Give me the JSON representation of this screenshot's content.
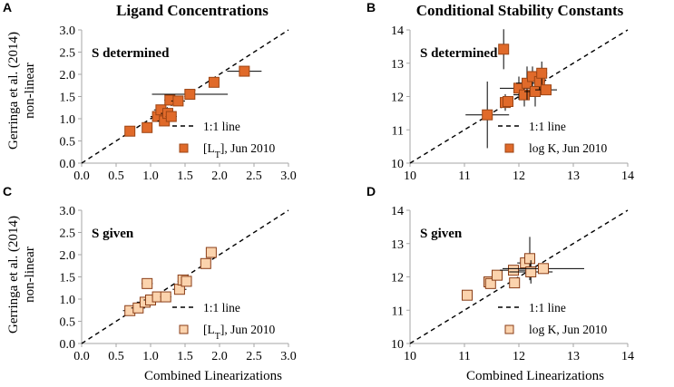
{
  "figure": {
    "column_titles": [
      "Ligand Concentrations",
      "Conditional Stability Constants"
    ],
    "y_axis_title_line1": "Gerringa et al. (2014)",
    "y_axis_title_line2": "non-linear",
    "x_axis_title": "Combined Linearizations"
  },
  "chart_data": [
    {
      "panel": "A",
      "type": "scatter",
      "annotation": "S determined",
      "xlim": [
        0.0,
        3.0
      ],
      "ylim": [
        0.0,
        3.0
      ],
      "xticks": [
        "0.0",
        "0.5",
        "1.0",
        "1.5",
        "2.0",
        "2.5",
        "3.0"
      ],
      "yticks": [
        "0.0",
        "0.5",
        "1.0",
        "1.5",
        "2.0",
        "2.5",
        "3.0"
      ],
      "legend": [
        "1:1 line",
        "[L",
        "T",
        "], Jun 2010"
      ],
      "marker": "dark",
      "points": [
        {
          "x": 0.7,
          "y": 0.72,
          "xerr": 0.05,
          "yerr": 0.05
        },
        {
          "x": 0.95,
          "y": 0.8,
          "xerr": 0.05,
          "yerr": 0.05
        },
        {
          "x": 1.1,
          "y": 1.05,
          "xerr": 0.1,
          "yerr": 0.1
        },
        {
          "x": 1.15,
          "y": 1.2,
          "xerr": 0.1,
          "yerr": 0.1
        },
        {
          "x": 1.2,
          "y": 0.95,
          "xerr": 0.1,
          "yerr": 0.08
        },
        {
          "x": 1.25,
          "y": 1.12,
          "xerr": 0.1,
          "yerr": 0.08
        },
        {
          "x": 1.3,
          "y": 1.05,
          "xerr": 0.08,
          "yerr": 0.08
        },
        {
          "x": 1.28,
          "y": 1.42,
          "xerr": 0.08,
          "yerr": 0.1
        },
        {
          "x": 1.4,
          "y": 1.4,
          "xerr": 0.1,
          "yerr": 0.1
        },
        {
          "x": 1.57,
          "y": 1.55,
          "xerr": 0.55,
          "yerr": 0.05
        },
        {
          "x": 1.92,
          "y": 1.82,
          "xerr": 0.05,
          "yerr": 0.05
        },
        {
          "x": 2.36,
          "y": 2.07,
          "xerr": 0.25,
          "yerr": 0.05
        }
      ]
    },
    {
      "panel": "B",
      "type": "scatter",
      "annotation": "S determined",
      "xlim": [
        10,
        14
      ],
      "ylim": [
        10,
        14
      ],
      "xticks": [
        "10",
        "11",
        "12",
        "13",
        "14"
      ],
      "yticks": [
        "10",
        "11",
        "12",
        "13",
        "14"
      ],
      "legend": [
        "1:1 line",
        "log K, Jun 2010"
      ],
      "marker": "dark",
      "points": [
        {
          "x": 11.42,
          "y": 11.45,
          "xerr": 0.4,
          "yerr": 1.0
        },
        {
          "x": 11.72,
          "y": 13.42,
          "xerr": 0.04,
          "yerr": 0.6
        },
        {
          "x": 11.75,
          "y": 11.82,
          "xerr": 0.1,
          "yerr": 0.25
        },
        {
          "x": 11.8,
          "y": 11.85,
          "xerr": 0.1,
          "yerr": 0.1
        },
        {
          "x": 12.0,
          "y": 12.25,
          "xerr": 0.35,
          "yerr": 0.35
        },
        {
          "x": 12.1,
          "y": 12.05,
          "xerr": 0.2,
          "yerr": 0.35
        },
        {
          "x": 12.15,
          "y": 12.4,
          "xerr": 0.2,
          "yerr": 0.5
        },
        {
          "x": 12.25,
          "y": 12.6,
          "xerr": 0.1,
          "yerr": 0.3
        },
        {
          "x": 12.3,
          "y": 12.15,
          "xerr": 0.2,
          "yerr": 0.45
        },
        {
          "x": 12.38,
          "y": 12.45,
          "xerr": 0.1,
          "yerr": 0.25
        },
        {
          "x": 12.42,
          "y": 12.7,
          "xerr": 0.1,
          "yerr": 0.35
        },
        {
          "x": 12.5,
          "y": 12.2,
          "xerr": 0.2,
          "yerr": 0.15
        }
      ]
    },
    {
      "panel": "C",
      "type": "scatter",
      "annotation": "S given",
      "xlim": [
        0.0,
        3.0
      ],
      "ylim": [
        0.0,
        3.0
      ],
      "xticks": [
        "0.0",
        "0.5",
        "1.0",
        "1.5",
        "2.0",
        "2.5",
        "3.0"
      ],
      "yticks": [
        "0.0",
        "0.5",
        "1.0",
        "1.5",
        "2.0",
        "2.5",
        "3.0"
      ],
      "legend": [
        "1:1 line",
        "[L",
        "T",
        "], Jun 2010"
      ],
      "marker": "light",
      "points": [
        {
          "x": 0.7,
          "y": 0.74,
          "xerr": 0.1,
          "yerr": 0.05
        },
        {
          "x": 0.82,
          "y": 0.8,
          "xerr": 0.1,
          "yerr": 0.05
        },
        {
          "x": 0.92,
          "y": 0.93,
          "xerr": 0.12,
          "yerr": 0.1
        },
        {
          "x": 0.95,
          "y": 1.35,
          "xerr": 0.08,
          "yerr": 0.1
        },
        {
          "x": 1.0,
          "y": 0.98,
          "xerr": 0.1,
          "yerr": 0.08
        },
        {
          "x": 1.1,
          "y": 1.05,
          "xerr": 0.08,
          "yerr": 0.05
        },
        {
          "x": 1.22,
          "y": 1.05,
          "xerr": 0.08,
          "yerr": 0.05
        },
        {
          "x": 1.42,
          "y": 1.22,
          "xerr": 0.1,
          "yerr": 0.08
        },
        {
          "x": 1.47,
          "y": 1.43,
          "xerr": 0.05,
          "yerr": 0.08
        },
        {
          "x": 1.52,
          "y": 1.4,
          "xerr": 0.05,
          "yerr": 0.08
        },
        {
          "x": 1.8,
          "y": 1.8,
          "xerr": 0.05,
          "yerr": 0.05
        },
        {
          "x": 1.88,
          "y": 2.05,
          "xerr": 0.05,
          "yerr": 0.05
        }
      ]
    },
    {
      "panel": "D",
      "type": "scatter",
      "annotation": "S given",
      "xlim": [
        10,
        14
      ],
      "ylim": [
        10,
        14
      ],
      "xticks": [
        "10",
        "11",
        "12",
        "13",
        "14"
      ],
      "yticks": [
        "10",
        "11",
        "12",
        "13",
        "14"
      ],
      "legend": [
        "1:1 line",
        "log K, Jun 2010"
      ],
      "marker": "light",
      "points": [
        {
          "x": 11.05,
          "y": 11.45,
          "xerr": 0.05,
          "yerr": 0.05
        },
        {
          "x": 11.45,
          "y": 11.85,
          "xerr": 0.1,
          "yerr": 0.1
        },
        {
          "x": 11.48,
          "y": 11.8,
          "xerr": 0.05,
          "yerr": 0.05
        },
        {
          "x": 11.6,
          "y": 12.05,
          "xerr": 0.05,
          "yerr": 0.05
        },
        {
          "x": 11.9,
          "y": 12.2,
          "xerr": 0.25,
          "yerr": 0.1
        },
        {
          "x": 11.92,
          "y": 11.82,
          "xerr": 0.05,
          "yerr": 0.05
        },
        {
          "x": 12.12,
          "y": 12.42,
          "xerr": 0.15,
          "yerr": 0.1
        },
        {
          "x": 12.2,
          "y": 12.55,
          "xerr": 0.1,
          "yerr": 0.65
        },
        {
          "x": 12.22,
          "y": 12.15,
          "xerr": 0.4,
          "yerr": 0.35
        },
        {
          "x": 12.45,
          "y": 12.25,
          "xerr": 0.75,
          "yerr": 0.15
        }
      ]
    }
  ],
  "colors": {
    "dark_fill": "#e06a2a",
    "dark_edge": "#9c4515",
    "light_fill": "#fbd3ad",
    "light_edge": "#8a3e18",
    "errorbar": "#000000",
    "axis": "#a6a6a6",
    "oneone": "#000000"
  }
}
